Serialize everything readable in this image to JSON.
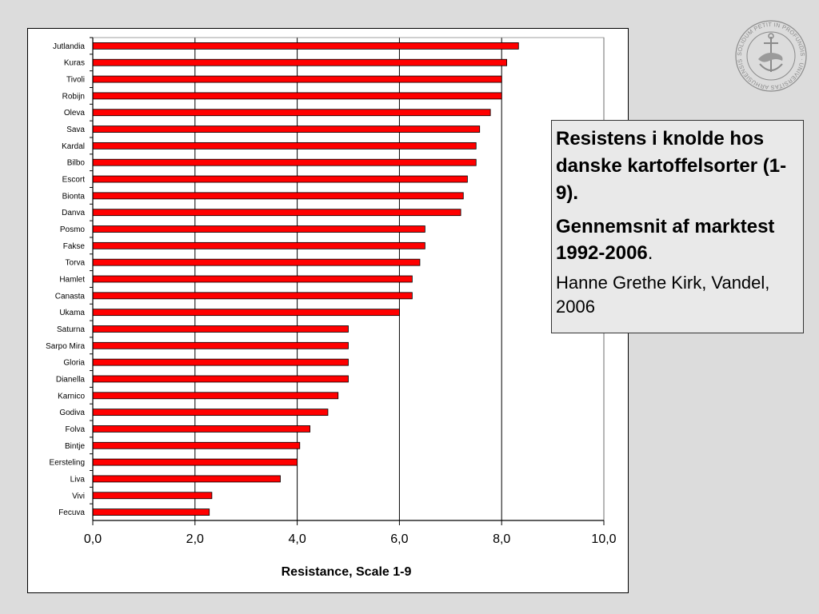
{
  "chart_data": {
    "type": "bar",
    "orientation": "horizontal",
    "categories": [
      "Jutlandia",
      "Kuras",
      "Tivoli",
      "Robijn",
      "Oleva",
      "Sava",
      "Kardal",
      "Bilbo",
      "Escort",
      "Bionta",
      "Danva",
      "Posmo",
      "Fakse",
      "Torva",
      "Hamlet",
      "Canasta",
      "Ukama",
      "Saturna",
      "Sarpo Mira",
      "Gloria",
      "Dianella",
      "Karnico",
      "Godiva",
      "Folva",
      "Bintje",
      "Eersteling",
      "Liva",
      "Vivi",
      "Fecuva"
    ],
    "values": [
      8.33,
      8.1,
      8.0,
      8.0,
      7.78,
      7.57,
      7.5,
      7.5,
      7.33,
      7.25,
      7.2,
      6.5,
      6.5,
      6.4,
      6.25,
      6.25,
      6.0,
      5.0,
      5.0,
      5.0,
      5.0,
      4.8,
      4.6,
      4.25,
      4.05,
      4.0,
      3.67,
      2.33,
      2.28
    ],
    "xlim": [
      0,
      10
    ],
    "xticks": [
      "0,0",
      "2,0",
      "4,0",
      "6,0",
      "8,0",
      "10,0"
    ],
    "xtick_values": [
      0,
      2,
      4,
      6,
      8,
      10
    ],
    "xlabel": "Resistance, Scale 1-9",
    "ylabel": "",
    "title": "",
    "grid": "vertical",
    "legend": "none",
    "bar_color": "#ff0000",
    "bar_edge_color": "#000000"
  },
  "info": {
    "title": "Resistens i knolde hos danske kartoffelsorter (1-9).",
    "subtitle_main": "Gennemsnit af marktest 1992-2006",
    "subtitle_suffix": ".",
    "author": "Hanne Grethe Kirk, Vandel, 2006"
  },
  "logo": {
    "icon": "university-seal-icon",
    "text": "SOLIDUM PETIT IN PROFUNDIS · UNIVERSITAS ARHUSIENSIS"
  }
}
